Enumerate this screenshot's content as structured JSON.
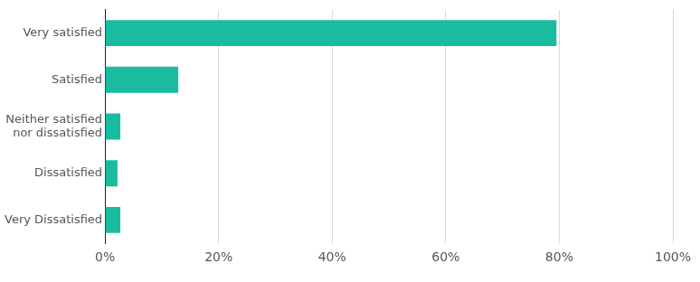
{
  "chart_data": {
    "type": "bar",
    "orientation": "horizontal",
    "categories": [
      "Very satisfied",
      "Satisfied",
      "Neither satisfied nor dissatisfied",
      "Dissatisfied",
      "Very Dissatisfied"
    ],
    "values": [
      79.5,
      12.9,
      2.7,
      2.2,
      2.7
    ],
    "color": "#19bc9f",
    "xlim": [
      0,
      100
    ],
    "xticks": [
      {
        "value": 0,
        "label": "0%"
      },
      {
        "value": 20,
        "label": "20%"
      },
      {
        "value": 40,
        "label": "40%"
      },
      {
        "value": 60,
        "label": "60%"
      },
      {
        "value": 80,
        "label": "80%"
      },
      {
        "value": 100,
        "label": "100%"
      }
    ],
    "grid": true
  }
}
